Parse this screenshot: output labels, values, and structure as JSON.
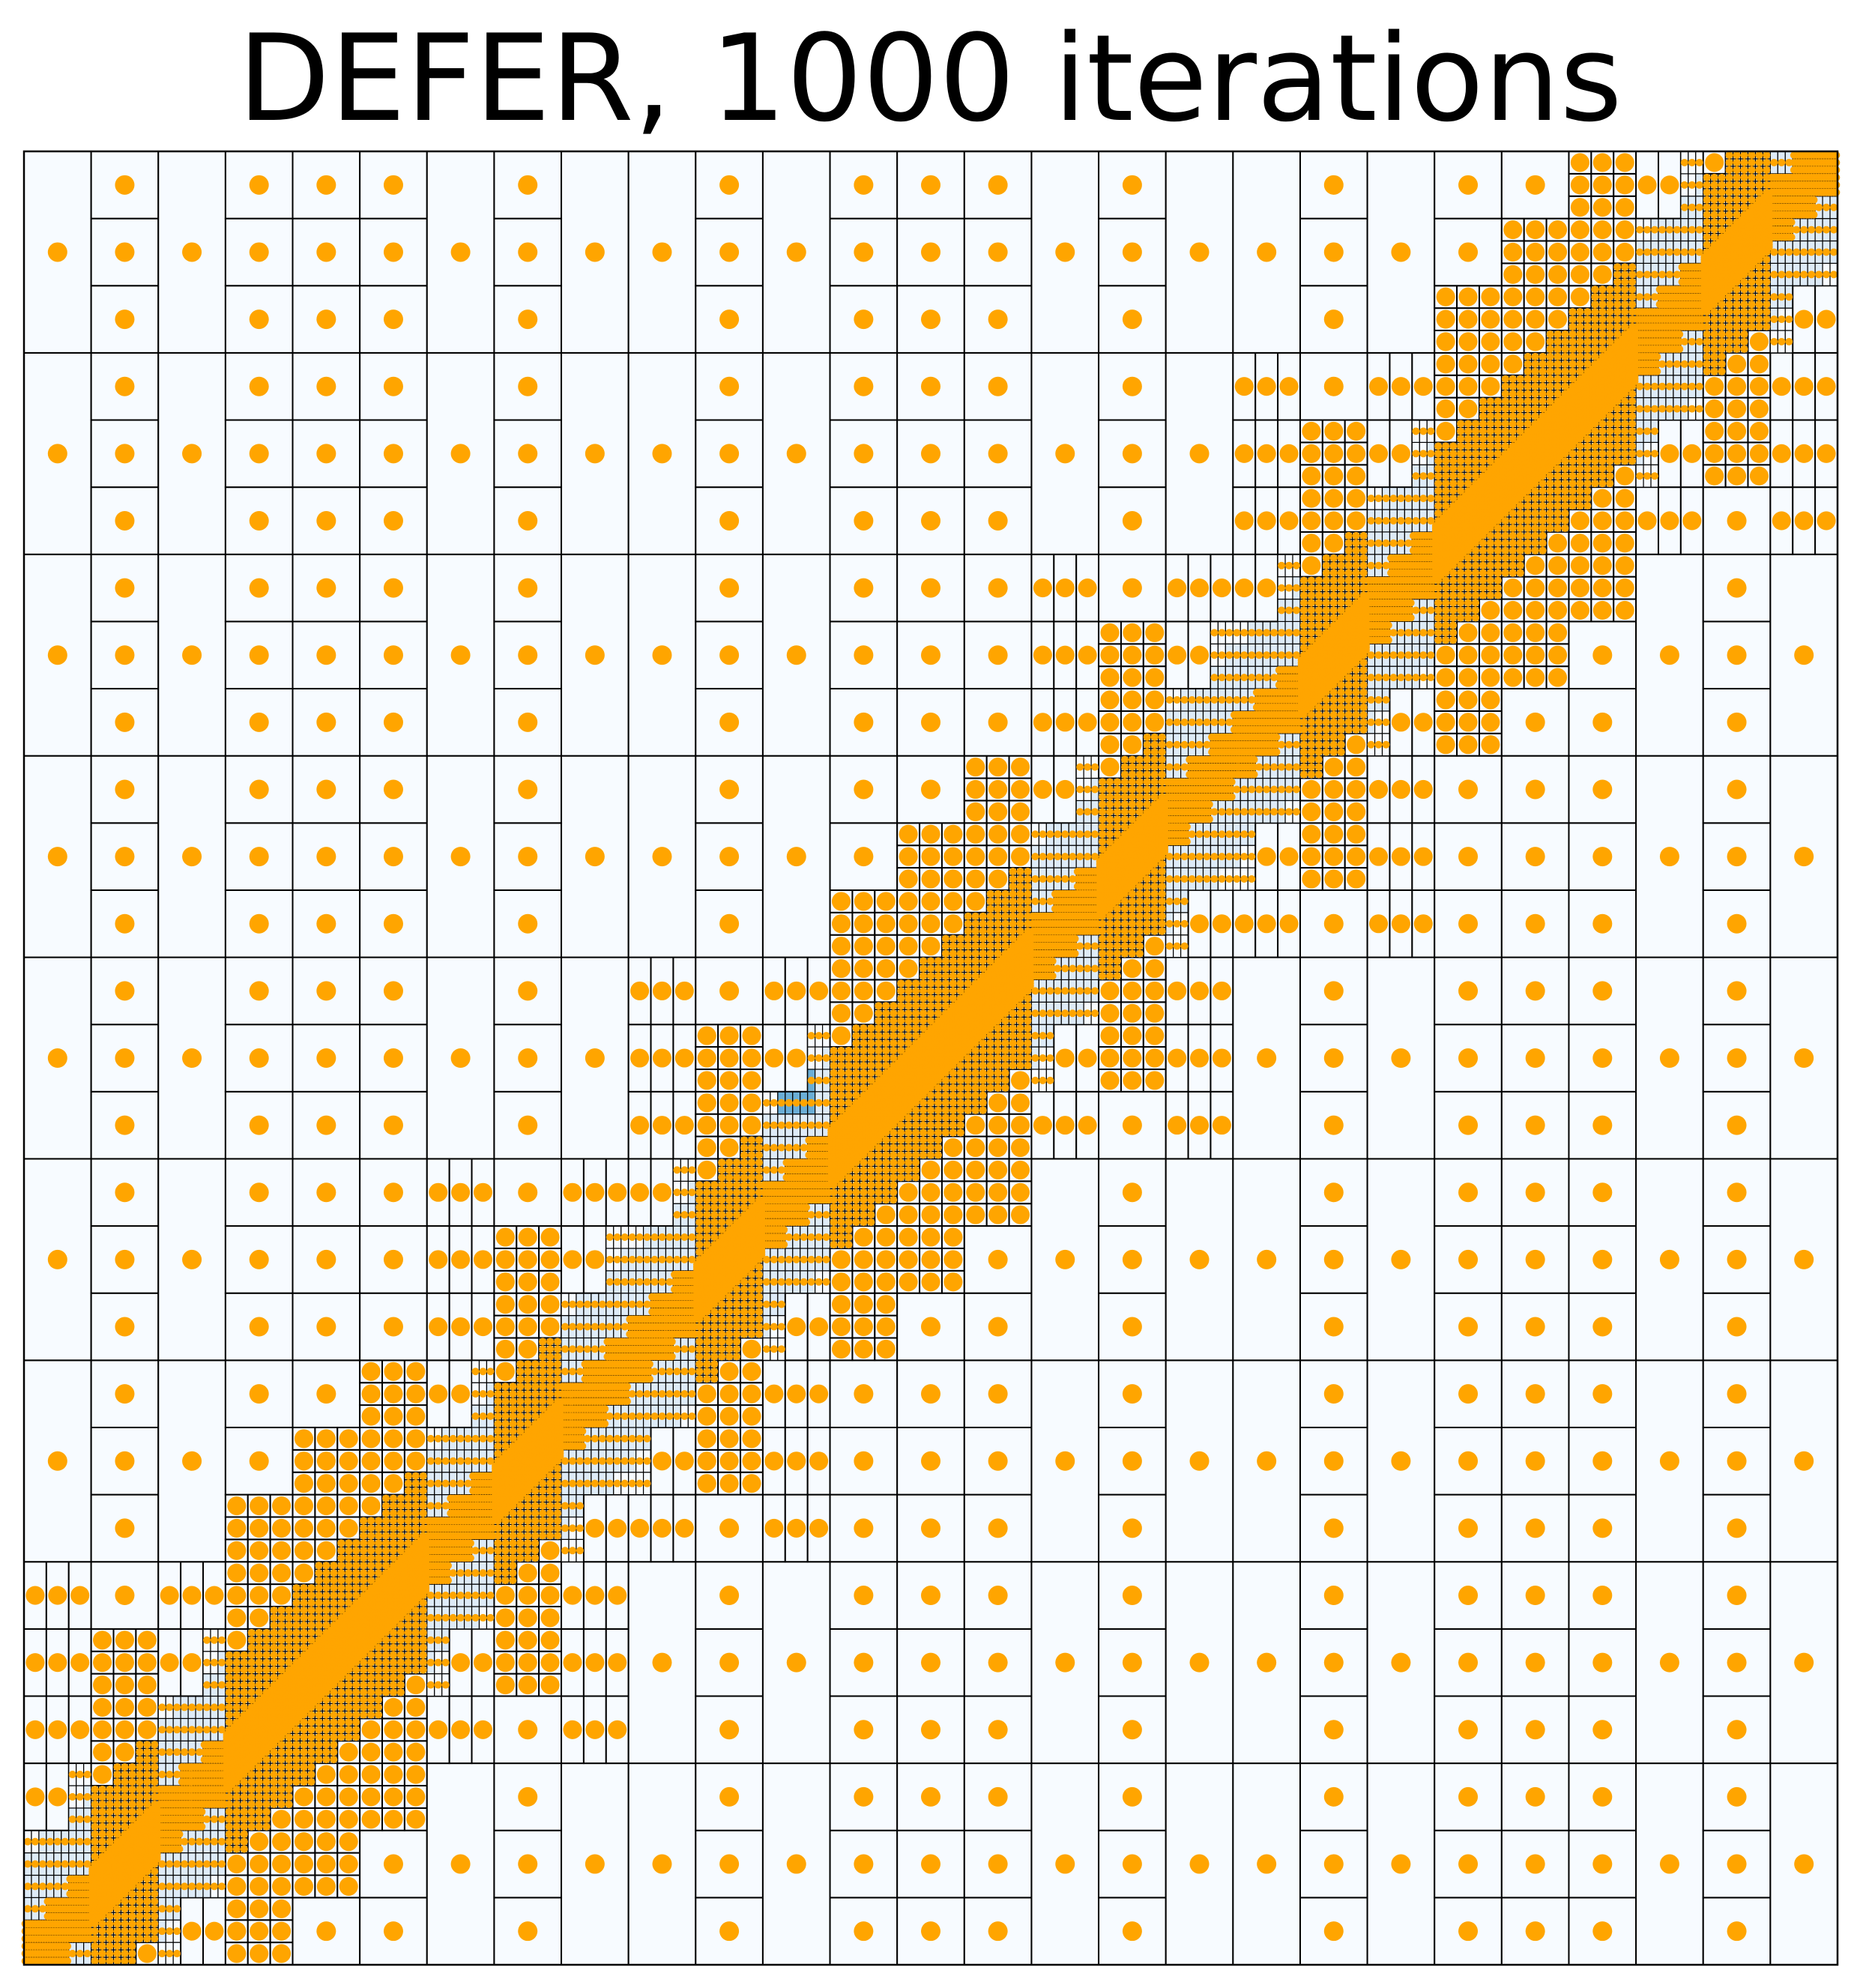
{
  "chart_data": {
    "type": "scatter",
    "title": "DEFER, 1000 iterations",
    "xlabel": "",
    "ylabel": "",
    "xlim": [
      0,
      1
    ],
    "ylim": [
      0,
      1
    ],
    "axes_visible": false,
    "grid": false,
    "description_of_content": "Recursive partition of the unit square into cells; one sample point at the centre of each cell; partition refined along the main diagonal",
    "colors": {
      "point": "#ffa500",
      "cell_edge": "#000000",
      "cell_fill_low": "#f7fbff",
      "cell_fill_mid": "#deebf7",
      "cell_fill_high": "#6baed6"
    },
    "partition": {
      "top_level_columns": 27,
      "top_level_rows": 9,
      "row_split": 3,
      "column_split_pattern_first_period": [
        1,
        3,
        1,
        3,
        3,
        3,
        1,
        3,
        1
      ],
      "diagonal_refinement_levels": [
        {
          "band_halfwidth": 0.085,
          "split": 3
        },
        {
          "band_halfwidth": 0.045,
          "split": 3
        },
        {
          "band_halfwidth": 0.012,
          "split": 3
        }
      ],
      "highlighted_cell_center": [
        0.4259,
        0.4815
      ]
    },
    "point_count_note": "one point per leaf cell"
  }
}
